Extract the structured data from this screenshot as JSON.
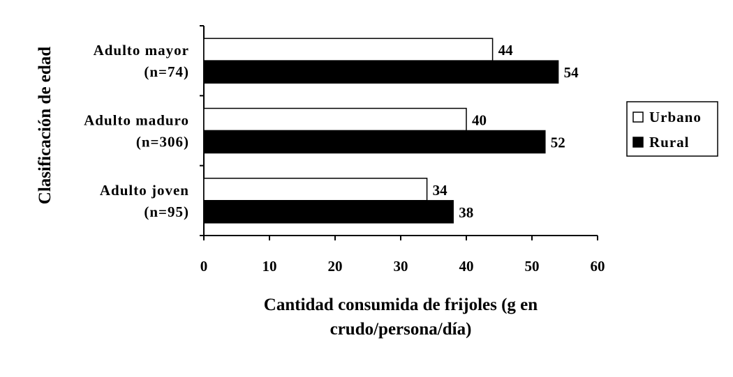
{
  "chart_data": {
    "type": "bar",
    "orientation": "horizontal",
    "categories": [
      [
        "Adulto joven",
        "(n=95)"
      ],
      [
        "Adulto maduro",
        "(n=306)"
      ],
      [
        "Adulto mayor",
        "(n=74)"
      ]
    ],
    "series": [
      {
        "name": "Urbano",
        "values": [
          34,
          40,
          44
        ],
        "color": "#ffffff"
      },
      {
        "name": "Rural",
        "values": [
          38,
          52,
          54
        ],
        "color": "#000000"
      }
    ],
    "xlabel": [
      "Cantidad consumida de frijoles (g en",
      "crudo/persona/día)"
    ],
    "ylabel": "Clasificación de edad",
    "xlim": [
      0,
      60
    ],
    "xticks": [
      0,
      10,
      20,
      30,
      40,
      50,
      60
    ],
    "grid": false,
    "legend_position": "right",
    "data_labels": true
  }
}
